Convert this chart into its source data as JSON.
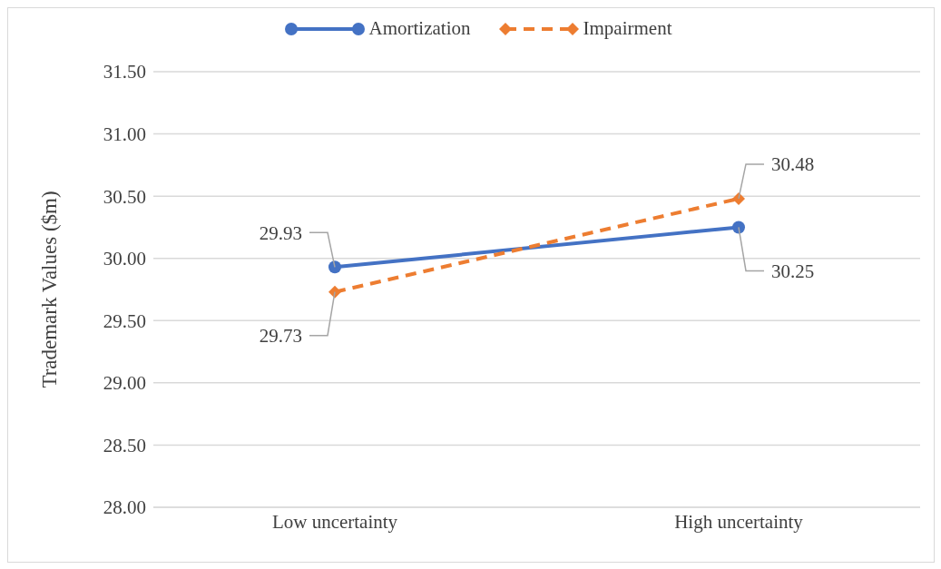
{
  "chart_data": {
    "type": "line",
    "ylabel": "Trademark Values ($m)",
    "categories": [
      "Low uncertainty",
      "High uncertainty"
    ],
    "series": [
      {
        "name": "Amortization",
        "color": "#4472c4",
        "values": [
          29.93,
          30.25
        ],
        "marker": "circle",
        "line_style": "solid"
      },
      {
        "name": "Impairment",
        "color": "#ed7d31",
        "values": [
          29.73,
          30.48
        ],
        "marker": "diamond",
        "line_style": "dashed"
      }
    ],
    "ylim": [
      28,
      31.5
    ],
    "yticks": [
      {
        "value": 28,
        "label": "28.00"
      },
      {
        "value": 28.5,
        "label": "28.50"
      },
      {
        "value": 29,
        "label": "29.00"
      },
      {
        "value": 29.5,
        "label": "29.50"
      },
      {
        "value": 30,
        "label": "30.00"
      },
      {
        "value": 30.5,
        "label": "30.50"
      },
      {
        "value": 31,
        "label": "31.00"
      },
      {
        "value": 31.5,
        "label": "31.50"
      }
    ],
    "grid": "y",
    "legend": "top",
    "data_labels": true
  }
}
